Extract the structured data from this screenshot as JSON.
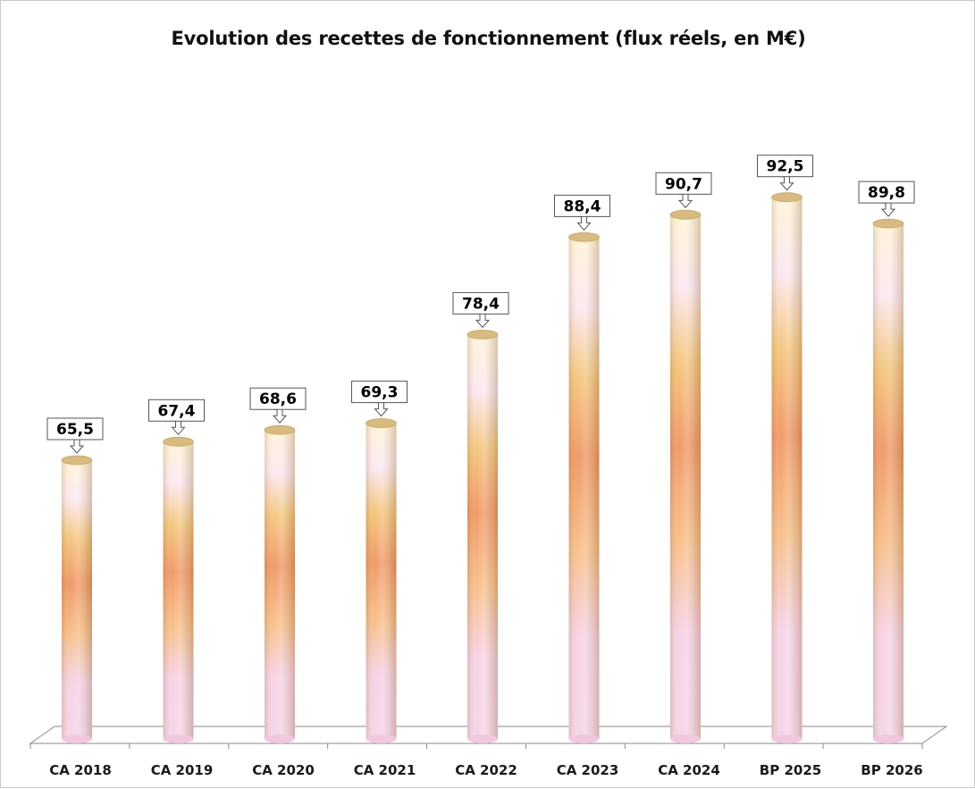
{
  "chart_data": {
    "type": "bar",
    "title": "Evolution des recettes de fonctionnement (flux réels, en M€)",
    "categories": [
      "CA 2018",
      "CA 2019",
      "CA 2020",
      "CA 2021",
      "CA 2022",
      "CA 2023",
      "CA 2024",
      "BP 2025",
      "BP 2026"
    ],
    "values": [
      65.5,
      67.4,
      68.6,
      69.3,
      78.4,
      88.4,
      90.7,
      92.5,
      89.8
    ],
    "value_labels": [
      "65,5",
      "67,4",
      "68,6",
      "69,3",
      "78,4",
      "88,4",
      "90,7",
      "92,5",
      "89,8"
    ],
    "bar_shape": "cylinder",
    "grid": false,
    "legend": "none",
    "colors": {
      "bar_top": "#fff3d6",
      "bar_mid_light": "#f8d8ee",
      "bar_gold": "#f3b45c",
      "bar_orange": "#f0946a",
      "bar_cap": "#d9bf86",
      "floor_line": "#8a8a8a",
      "label_border": "#555555"
    }
  }
}
